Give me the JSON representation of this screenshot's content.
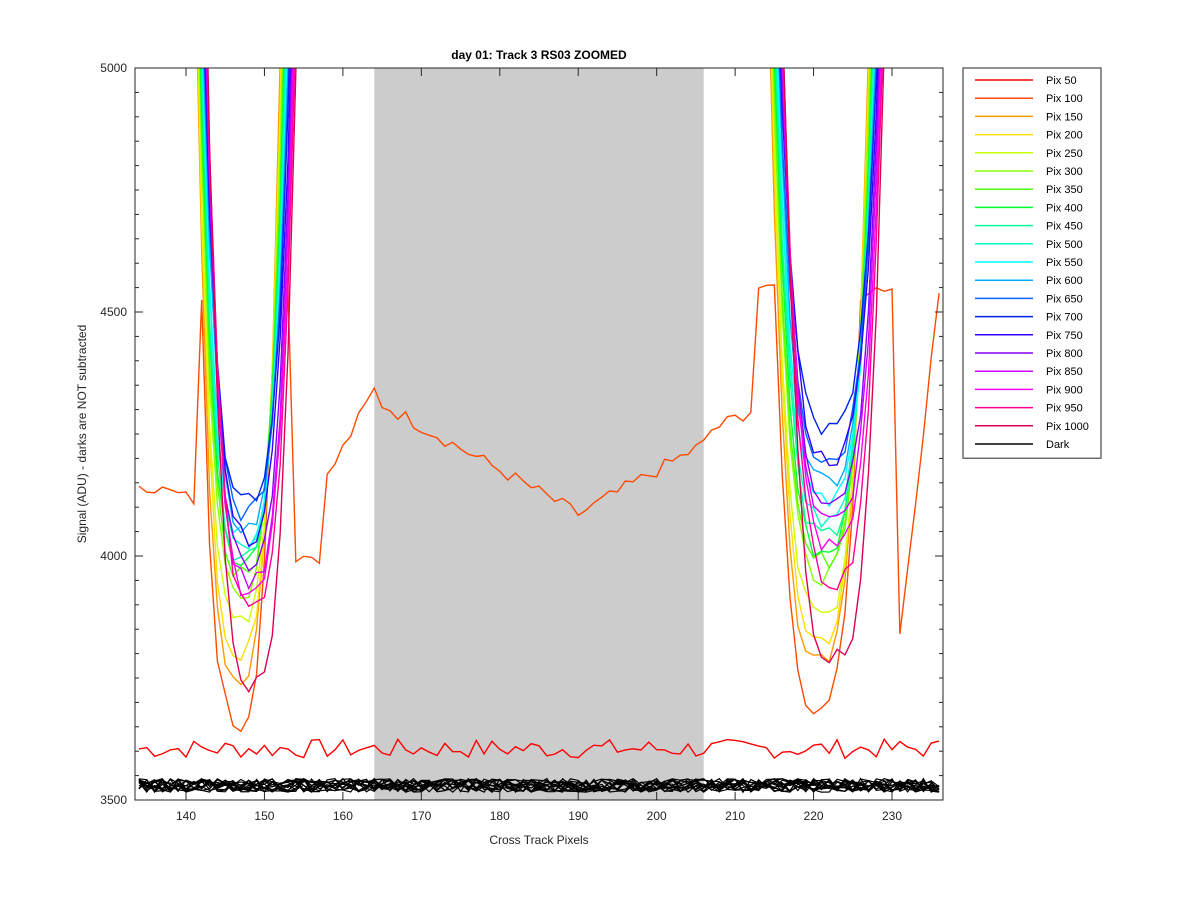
{
  "chart_data": {
    "type": "line",
    "title": "day 01: Track 3  RS03 ZOOMED",
    "xlabel": "Cross Track Pixels",
    "ylabel": "Signal (ADU) - darks are NOT subtracted",
    "xlim": [
      133.5,
      236.5
    ],
    "ylim": [
      3500,
      5000
    ],
    "xticks": [
      140,
      150,
      160,
      170,
      180,
      190,
      200,
      210,
      220,
      230
    ],
    "yticks": [
      3500,
      4000,
      4500,
      5000
    ],
    "shaded_region": {
      "x_start": 164,
      "x_end": 206,
      "color": "#cccccc"
    },
    "grid": false,
    "legend_position": "outside-right",
    "series": [
      {
        "name": "Pix 50",
        "color": "#ff0000",
        "min_left": 3590,
        "min_right": 3600
      },
      {
        "name": "Pix 100",
        "color": "#ff4a00",
        "min_left": 3665,
        "min_right": 3690
      },
      {
        "name": "Pix 150",
        "color": "#ff9900",
        "min_left": 3755,
        "min_right": 3780
      },
      {
        "name": "Pix 200",
        "color": "#ffdd00",
        "min_left": 3800,
        "min_right": 3830
      },
      {
        "name": "Pix 250",
        "color": "#ccff00",
        "min_left": 3860,
        "min_right": 3880
      },
      {
        "name": "Pix 300",
        "color": "#88ff00",
        "min_left": 3930,
        "min_right": 3960
      },
      {
        "name": "Pix 350",
        "color": "#55ff00",
        "min_left": 3960,
        "min_right": 3990
      },
      {
        "name": "Pix 400",
        "color": "#00ff33",
        "min_left": 3980,
        "min_right": 4010
      },
      {
        "name": "Pix 450",
        "color": "#00ff99",
        "min_left": 4000,
        "min_right": 4040
      },
      {
        "name": "Pix 500",
        "color": "#00ffcc",
        "min_left": 4020,
        "min_right": 4070
      },
      {
        "name": "Pix 550",
        "color": "#00ffff",
        "min_left": 4040,
        "min_right": 4110
      },
      {
        "name": "Pix 600",
        "color": "#00aaff",
        "min_left": 4060,
        "min_right": 4150
      },
      {
        "name": "Pix 650",
        "color": "#0066ff",
        "min_left": 4090,
        "min_right": 4200
      },
      {
        "name": "Pix 700",
        "color": "#0022ee",
        "min_left": 4110,
        "min_right": 4260
      },
      {
        "name": "Pix 750",
        "color": "#3300ff",
        "min_left": 4040,
        "min_right": 4200
      },
      {
        "name": "Pix 800",
        "color": "#8800ff",
        "min_left": 3990,
        "min_right": 4120
      },
      {
        "name": "Pix 850",
        "color": "#cc00ff",
        "min_left": 3950,
        "min_right": 4070
      },
      {
        "name": "Pix 900",
        "color": "#ff00ee",
        "min_left": 3930,
        "min_right": 4020
      },
      {
        "name": "Pix 950",
        "color": "#ff0099",
        "min_left": 3900,
        "min_right": 3950
      },
      {
        "name": "Pix 1000",
        "color": "#dd0055",
        "min_left": 3740,
        "min_right": 3790
      },
      {
        "name": "Dark",
        "color": "#000000",
        "level": 3530
      }
    ]
  }
}
